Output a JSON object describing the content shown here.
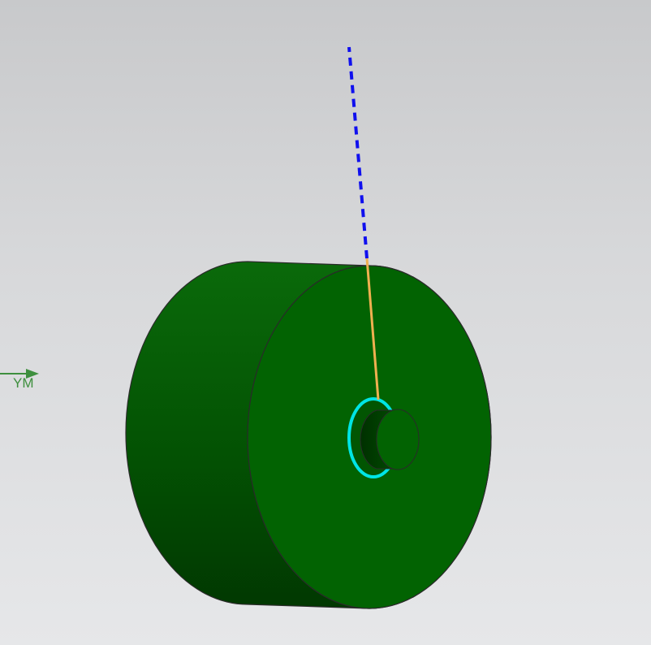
{
  "viewport": {
    "background_top": "#c8c9cb",
    "background_bottom": "#e6e7e9"
  },
  "triad": {
    "axis_label": "YM",
    "axis_color": "#3e8f3e"
  },
  "model": {
    "body_color": "#006400",
    "body_dark_color": "#003a00",
    "edge_color": "#2a2a2a",
    "selected_edge_color": "#00e5e5",
    "vector_color": "#f0b050",
    "dashed_axis_color": "#1010ee"
  }
}
